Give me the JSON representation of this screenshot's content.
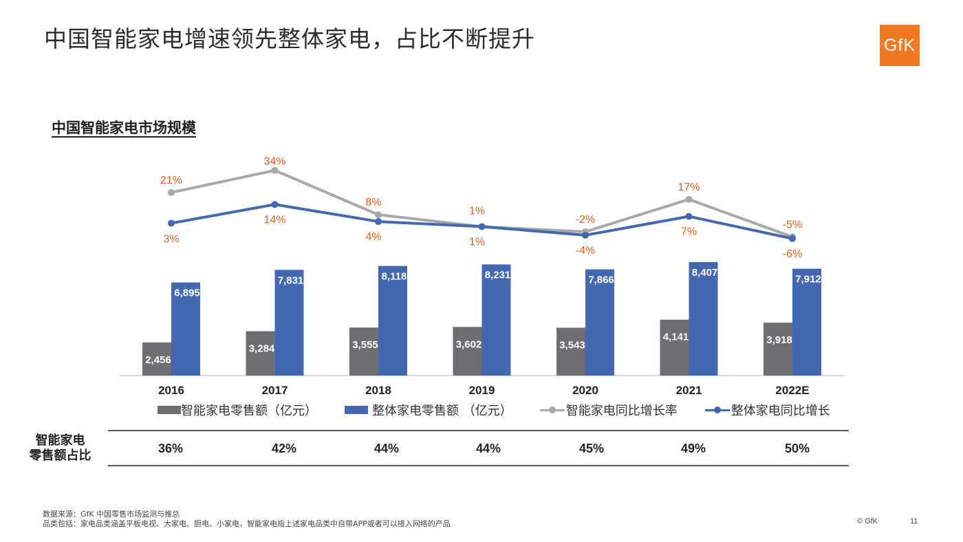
{
  "page": {
    "title": "中国智能家电增速领先整体家电，占比不断提升",
    "logo_text": "GfK",
    "section_title": "中国智能家电市场规模",
    "page_number": "11",
    "copyright": "© GfK"
  },
  "chart_data": {
    "type": "bar",
    "categories": [
      "2016",
      "2017",
      "2018",
      "2019",
      "2020",
      "2021",
      "2022E"
    ],
    "series": [
      {
        "name": "智能家电零售额（亿元）",
        "type": "bar",
        "color": "#6d6e71",
        "values": [
          2456,
          3284,
          3555,
          3602,
          3543,
          4141,
          3918
        ],
        "labels": [
          "2,456",
          "3,284",
          "3,555",
          "3,602",
          "3,543",
          "4,141",
          "3,918"
        ]
      },
      {
        "name": "整体家电零售额 （亿元）",
        "type": "bar",
        "color": "#4468b0",
        "values": [
          6895,
          7831,
          8118,
          8231,
          7866,
          8407,
          7912
        ],
        "labels": [
          "6,895",
          "7,831",
          "8,118",
          "8,231",
          "7,866",
          "8,407",
          "7,912"
        ]
      },
      {
        "name": "智能家电同比增长率",
        "type": "line",
        "color": "#a6a8ab",
        "values": [
          21,
          34,
          8,
          1,
          -2,
          17,
          -5
        ],
        "labels": [
          "21%",
          "34%",
          "8%",
          "1%",
          "-2%",
          "17%",
          "-5%"
        ]
      },
      {
        "name": "整体家电同比增长",
        "type": "line",
        "color": "#4468b0",
        "values": [
          3,
          14,
          4,
          1,
          -4,
          7,
          -6
        ],
        "labels": [
          "3%",
          "14%",
          "4%",
          "1%",
          "-4%",
          "7%",
          "-6%"
        ]
      }
    ],
    "label_color": "#e8601c"
  },
  "share_table": {
    "header": "智能家电零售额占比",
    "header_line1": "智能家电",
    "header_line2": "零售额占比",
    "values": [
      "36%",
      "42%",
      "44%",
      "44%",
      "45%",
      "49%",
      "50%"
    ]
  },
  "footnotes": {
    "source": "数据来源：GfK 中国零售市场监测与推总",
    "categories": "品类包括：家电品类涵盖平板电视、大家电、厨电、小家电，智能家电指上述家电品类中自带APP或者可以接入网络的产品"
  }
}
